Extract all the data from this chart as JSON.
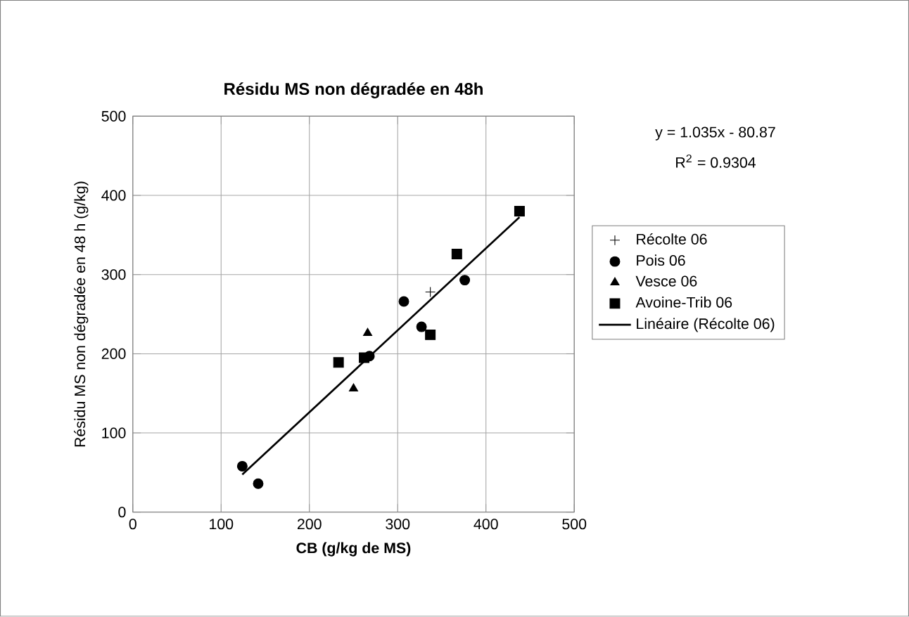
{
  "chart_data": {
    "type": "scatter",
    "title": "Résidu MS non dégradée en 48h",
    "xlabel": "CB (g/kg de MS)",
    "ylabel": "Résidu MS non dégradée en 48 h (g/kg)",
    "annotations": [
      "y = 1.035x - 80.87",
      "R$^{2}$ = 0.9304"
    ],
    "xlim": [
      0,
      500
    ],
    "ylim": [
      0,
      500
    ],
    "xticks": [
      0,
      100,
      200,
      300,
      400,
      500
    ],
    "yticks": [
      0,
      100,
      200,
      300,
      400,
      500
    ],
    "grid": true,
    "legend": "right",
    "series": [
      {
        "name": "Récolte 06",
        "color": "#000000",
        "marker": "cross",
        "x": [
          337
        ],
        "values": [
          278
        ]
      },
      {
        "name": "Pois 06",
        "color": "#000000",
        "marker": "circle",
        "x": [
          124,
          142,
          307,
          376,
          327,
          268
        ],
        "values": [
          58,
          36,
          266,
          293,
          234,
          197
        ]
      },
      {
        "name": "Vesce 06",
        "color": "#000000",
        "marker": "triangle",
        "x": [
          266,
          250
        ],
        "values": [
          226,
          156
        ]
      },
      {
        "name": "Avoine-Trib 06",
        "color": "#000000",
        "marker": "square",
        "x": [
          233,
          367,
          438,
          262,
          337
        ],
        "values": [
          189,
          326,
          380,
          195,
          224
        ]
      },
      {
        "name": "Linéaire (Récolte 06)",
        "type": "line",
        "color": "#000000",
        "marker": "none",
        "x": [
          124,
          438
        ],
        "values": [
          47.5,
          372.5
        ]
      }
    ]
  }
}
